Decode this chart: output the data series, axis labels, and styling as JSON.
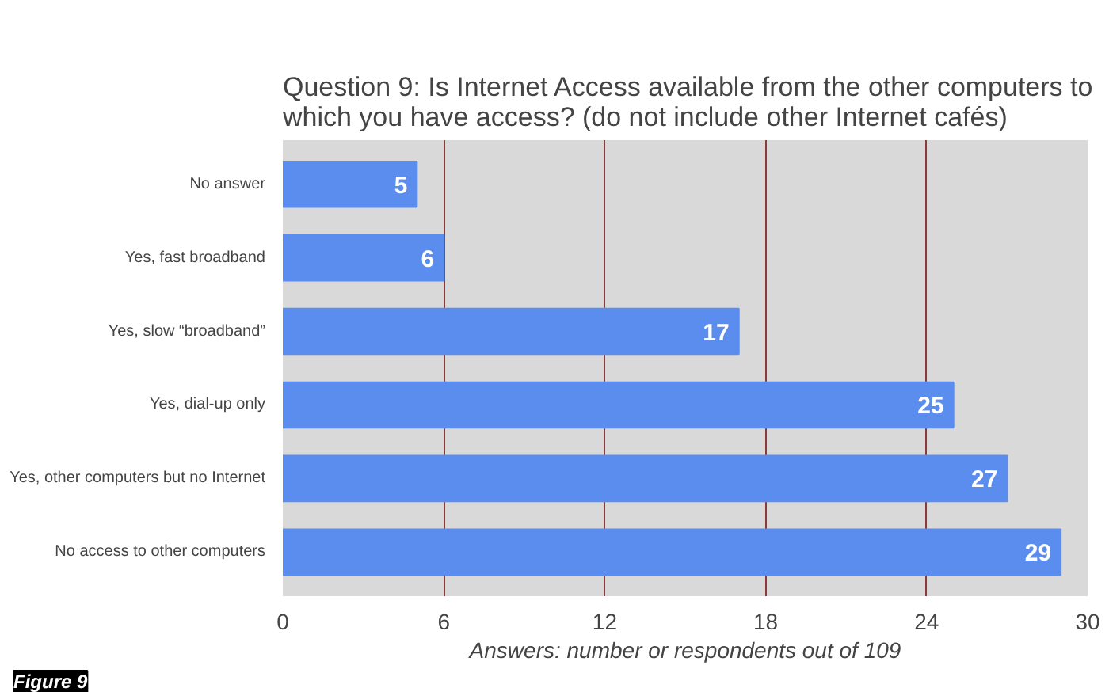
{
  "chart_data": {
    "type": "bar",
    "orientation": "horizontal",
    "title": "Question 9: Is Internet Access available from the other computers to\nwhich you have access? (do not include other Internet cafés)",
    "xlabel": "Answers: number or respondents out of 109",
    "categories": [
      "No answer",
      "Yes, fast broadband",
      "Yes, slow “broadband”",
      "Yes, dial-up only",
      "Yes, other computers but no Internet",
      "No access to other computers"
    ],
    "values": [
      5,
      6,
      17,
      25,
      27,
      29
    ],
    "color": "#5b8def",
    "data_labels": true,
    "xlim": [
      0,
      30
    ],
    "xticks": [
      0,
      6,
      12,
      18,
      24,
      30
    ],
    "grid": "x",
    "annotations": [
      "Figure 9"
    ]
  }
}
